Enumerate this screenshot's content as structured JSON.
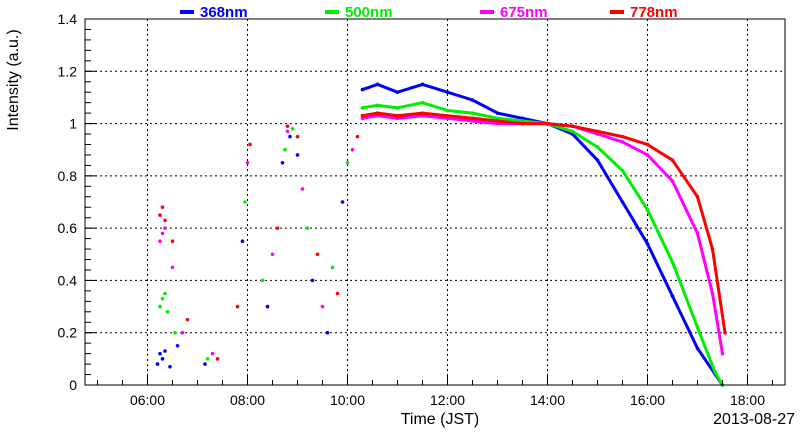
{
  "chart_data": {
    "type": "scatter",
    "title": "",
    "xlabel": "Time (JST)",
    "ylabel": "Intensity (a.u.)",
    "date_label": "2013-08-27",
    "x_unit": "hours (JST)",
    "xlim": [
      4.75,
      18.75
    ],
    "ylim": [
      0,
      1.4
    ],
    "grid": true,
    "legend_placement": "top",
    "x_ticks": [
      {
        "value": 6,
        "label": "06:00"
      },
      {
        "value": 8,
        "label": "08:00"
      },
      {
        "value": 10,
        "label": "10:00"
      },
      {
        "value": 12,
        "label": "12:00"
      },
      {
        "value": 14,
        "label": "14:00"
      },
      {
        "value": 16,
        "label": "16:00"
      },
      {
        "value": 18,
        "label": "18:00"
      }
    ],
    "y_ticks": [
      {
        "value": 0,
        "label": "0"
      },
      {
        "value": 0.2,
        "label": "0.2"
      },
      {
        "value": 0.4,
        "label": "0.4"
      },
      {
        "value": 0.6,
        "label": "0.6"
      },
      {
        "value": 0.8,
        "label": "0.8"
      },
      {
        "value": 1.0,
        "label": "1"
      },
      {
        "value": 1.2,
        "label": "1.2"
      },
      {
        "value": 1.4,
        "label": "1.4"
      }
    ],
    "series": [
      {
        "name": "368nm",
        "color": "#0000ff",
        "early_points": [
          [
            6.2,
            0.08
          ],
          [
            6.25,
            0.12
          ],
          [
            6.3,
            0.1
          ],
          [
            6.35,
            0.13
          ],
          [
            6.45,
            0.07
          ],
          [
            6.6,
            0.15
          ],
          [
            7.15,
            0.08
          ],
          [
            7.9,
            0.55
          ],
          [
            8.4,
            0.3
          ],
          [
            8.7,
            0.85
          ],
          [
            8.85,
            0.95
          ],
          [
            9.0,
            0.88
          ],
          [
            9.3,
            0.4
          ],
          [
            9.6,
            0.2
          ],
          [
            9.9,
            0.7
          ]
        ],
        "curve": [
          [
            10.3,
            1.13
          ],
          [
            10.6,
            1.15
          ],
          [
            11.0,
            1.12
          ],
          [
            11.5,
            1.15
          ],
          [
            12.0,
            1.12
          ],
          [
            12.5,
            1.09
          ],
          [
            13.0,
            1.04
          ],
          [
            13.5,
            1.02
          ],
          [
            14.0,
            1.0
          ],
          [
            14.5,
            0.96
          ],
          [
            15.0,
            0.86
          ],
          [
            15.5,
            0.7
          ],
          [
            16.0,
            0.54
          ],
          [
            16.5,
            0.34
          ],
          [
            17.0,
            0.14
          ],
          [
            17.5,
            0.0
          ]
        ]
      },
      {
        "name": "500nm",
        "color": "#00ee00",
        "early_points": [
          [
            6.25,
            0.3
          ],
          [
            6.3,
            0.33
          ],
          [
            6.35,
            0.35
          ],
          [
            6.4,
            0.28
          ],
          [
            6.55,
            0.2
          ],
          [
            7.2,
            0.1
          ],
          [
            7.95,
            0.7
          ],
          [
            8.3,
            0.4
          ],
          [
            8.75,
            0.9
          ],
          [
            8.9,
            0.98
          ],
          [
            9.2,
            0.6
          ],
          [
            9.7,
            0.45
          ],
          [
            10.0,
            0.85
          ]
        ],
        "curve": [
          [
            10.3,
            1.06
          ],
          [
            10.6,
            1.07
          ],
          [
            11.0,
            1.06
          ],
          [
            11.5,
            1.08
          ],
          [
            12.0,
            1.05
          ],
          [
            12.5,
            1.04
          ],
          [
            13.0,
            1.02
          ],
          [
            13.5,
            1.01
          ],
          [
            14.0,
            1.0
          ],
          [
            14.5,
            0.97
          ],
          [
            15.0,
            0.91
          ],
          [
            15.5,
            0.82
          ],
          [
            16.0,
            0.67
          ],
          [
            16.5,
            0.47
          ],
          [
            17.0,
            0.22
          ],
          [
            17.35,
            0.05
          ],
          [
            17.5,
            0.0
          ]
        ]
      },
      {
        "name": "675nm",
        "color": "#ff00ff",
        "early_points": [
          [
            6.25,
            0.55
          ],
          [
            6.3,
            0.58
          ],
          [
            6.35,
            0.6
          ],
          [
            6.5,
            0.45
          ],
          [
            6.7,
            0.2
          ],
          [
            7.3,
            0.12
          ],
          [
            8.0,
            0.85
          ],
          [
            8.5,
            0.5
          ],
          [
            8.8,
            0.97
          ],
          [
            9.1,
            0.75
          ],
          [
            9.5,
            0.3
          ],
          [
            10.1,
            0.9
          ]
        ],
        "curve": [
          [
            10.3,
            1.02
          ],
          [
            10.6,
            1.03
          ],
          [
            11.0,
            1.02
          ],
          [
            11.5,
            1.03
          ],
          [
            12.0,
            1.02
          ],
          [
            12.5,
            1.01
          ],
          [
            13.0,
            1.0
          ],
          [
            13.5,
            1.0
          ],
          [
            14.0,
            1.0
          ],
          [
            14.5,
            0.99
          ],
          [
            15.0,
            0.96
          ],
          [
            15.5,
            0.93
          ],
          [
            16.0,
            0.88
          ],
          [
            16.5,
            0.78
          ],
          [
            17.0,
            0.58
          ],
          [
            17.3,
            0.35
          ],
          [
            17.5,
            0.12
          ]
        ]
      },
      {
        "name": "778nm",
        "color": "#ff0000",
        "early_points": [
          [
            6.25,
            0.65
          ],
          [
            6.3,
            0.68
          ],
          [
            6.35,
            0.63
          ],
          [
            6.5,
            0.55
          ],
          [
            6.8,
            0.25
          ],
          [
            7.4,
            0.1
          ],
          [
            7.8,
            0.3
          ],
          [
            8.05,
            0.92
          ],
          [
            8.6,
            0.6
          ],
          [
            8.8,
            0.99
          ],
          [
            9.0,
            0.95
          ],
          [
            9.4,
            0.5
          ],
          [
            9.8,
            0.35
          ],
          [
            10.2,
            0.95
          ]
        ],
        "curve": [
          [
            10.3,
            1.03
          ],
          [
            10.6,
            1.04
          ],
          [
            11.0,
            1.03
          ],
          [
            11.5,
            1.04
          ],
          [
            12.0,
            1.03
          ],
          [
            12.5,
            1.02
          ],
          [
            13.0,
            1.01
          ],
          [
            13.5,
            1.0
          ],
          [
            14.0,
            1.0
          ],
          [
            14.5,
            0.99
          ],
          [
            15.0,
            0.97
          ],
          [
            15.5,
            0.95
          ],
          [
            16.0,
            0.92
          ],
          [
            16.5,
            0.86
          ],
          [
            17.0,
            0.72
          ],
          [
            17.3,
            0.52
          ],
          [
            17.55,
            0.2
          ]
        ]
      }
    ]
  }
}
